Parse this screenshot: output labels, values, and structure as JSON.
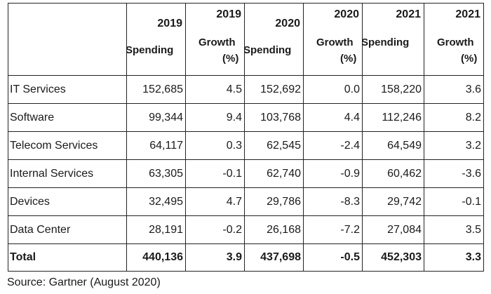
{
  "table": {
    "headers": [
      {
        "year": "2019",
        "label": "Spending",
        "kind": "spend"
      },
      {
        "year": "2019",
        "label_line1": "Growth",
        "label_line2": "(%)",
        "kind": "growth"
      },
      {
        "year": "2020",
        "label": "Spending",
        "kind": "spend"
      },
      {
        "year": "2020",
        "label_line1": "Growth",
        "label_line2": "(%)",
        "kind": "growth"
      },
      {
        "year": "2021",
        "label": "Spending",
        "kind": "spend"
      },
      {
        "year": "2021",
        "label_line1": "Growth",
        "label_line2": "(%)",
        "kind": "growth"
      }
    ],
    "rows": [
      {
        "category": "IT Services",
        "values": [
          "152,685",
          "4.5",
          "152,692",
          "0.0",
          "158,220",
          "3.6"
        ]
      },
      {
        "category": "Software",
        "values": [
          "99,344",
          "9.4",
          "103,768",
          "4.4",
          "112,246",
          "8.2"
        ]
      },
      {
        "category": "Telecom Services",
        "values": [
          "64,117",
          "0.3",
          "62,545",
          "-2.4",
          "64,549",
          "3.2"
        ]
      },
      {
        "category": "Internal Services",
        "values": [
          "63,305",
          "-0.1",
          "62,740",
          "-0.9",
          "60,462",
          "-3.6"
        ]
      },
      {
        "category": "Devices",
        "values": [
          "32,495",
          "4.7",
          "29,786",
          "-8.3",
          "29,742",
          "-0.1"
        ]
      },
      {
        "category": "Data Center",
        "values": [
          "28,191",
          "-0.2",
          "26,168",
          "-7.2",
          "27,084",
          "3.5"
        ]
      }
    ],
    "total": {
      "category": "Total",
      "values": [
        "440,136",
        "3.9",
        "437,698",
        "-0.5",
        "452,303",
        "3.3"
      ]
    }
  },
  "source": "Source: Gartner (August 2020)"
}
